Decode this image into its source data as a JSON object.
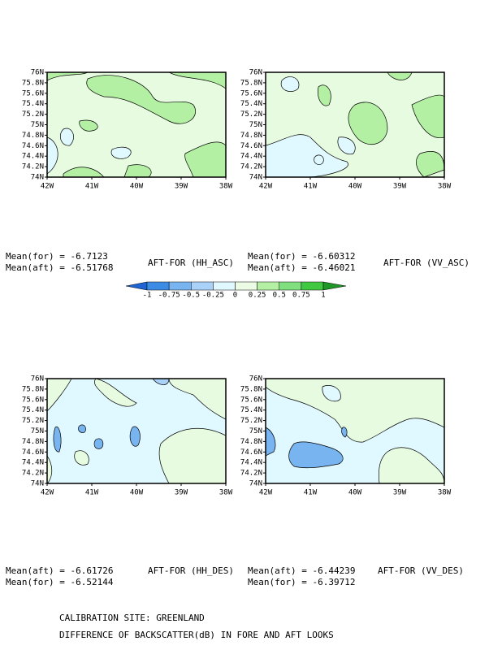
{
  "y_ticks": [
    "76N",
    "75.8N",
    "75.6N",
    "75.4N",
    "75.2N",
    "75N",
    "74.8N",
    "74.6N",
    "74.4N",
    "74.2N",
    "74N"
  ],
  "x_ticks": [
    "42W",
    "41W",
    "40W",
    "39W",
    "38W"
  ],
  "panels": [
    {
      "title": "AFT-FOR (HH_ASC)",
      "stats": [
        "Mean(for) = -6.7123",
        "Mean(aft) = -6.51768"
      ]
    },
    {
      "title": "AFT-FOR (VV_ASC)",
      "stats": [
        "Mean(for) = -6.60312",
        "Mean(aft) = -6.46021"
      ]
    },
    {
      "title": "AFT-FOR (HH_DES)",
      "stats": [
        "Mean(aft) = -6.61726",
        "Mean(for) = -6.52144"
      ]
    },
    {
      "title": "AFT-FOR (VV_DES)",
      "stats": [
        "Mean(aft) = -6.44239",
        "Mean(for) = -6.39712"
      ]
    }
  ],
  "colorbar": {
    "levels": [
      -1,
      -0.75,
      -0.5,
      -0.25,
      0,
      0.25,
      0.5,
      0.75,
      1
    ],
    "colors": [
      "#1e64d2",
      "#3c8ce6",
      "#78b4f0",
      "#aad2f8",
      "#e0f8ff",
      "#ecfce4",
      "#b4f0a4",
      "#80e080",
      "#40c840",
      "#1e9628"
    ]
  },
  "footer": [
    "CALIBRATION SITE: GREENLAND",
    "DIFFERENCE OF BACKSCATTER(dB) IN FORE AND AFT LOOKS"
  ]
}
